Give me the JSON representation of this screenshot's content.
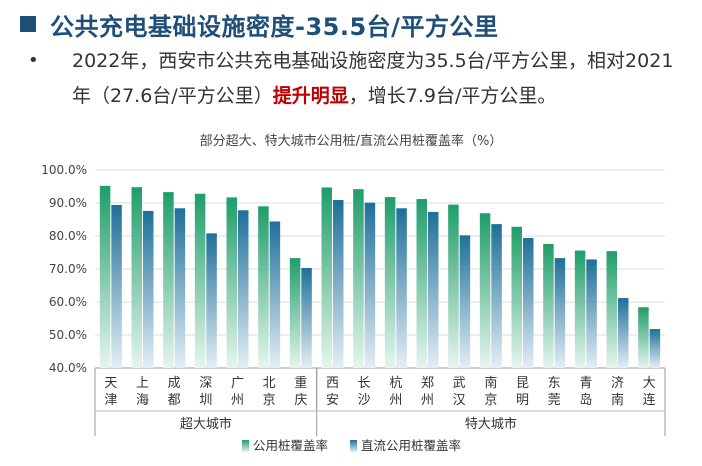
{
  "slide": {
    "title": "公共充电基础设施密度-35.5台/平方公里",
    "bullet": "•",
    "para_before": "2022年，西安市公共充电基础设施密度为35.5台/平方公里，相对2021年（27.6台/平方公里）",
    "para_highlight": "提升明显",
    "para_after": "，增长7.9台/平方公里。"
  },
  "colors": {
    "title": "#1f4e79",
    "highlight": "#c00000",
    "series1_top": "#1f9d6a",
    "series1_bottom": "#e6f5ee",
    "series2_top": "#1f6f9a",
    "series2_bottom": "#e4eef5"
  },
  "chart_data": {
    "type": "bar",
    "title": "部分超大、特大城市公用桩/直流公用桩覆盖率（%）",
    "categories": [
      "天津",
      "上海",
      "成都",
      "深圳",
      "广州",
      "北京",
      "重庆",
      "西安",
      "长沙",
      "杭州",
      "郑州",
      "武汉",
      "南京",
      "昆明",
      "东莞",
      "青岛",
      "济南",
      "大连"
    ],
    "category_groups": [
      {
        "name": "超大城市",
        "start": 0,
        "end": 6
      },
      {
        "name": "特大城市",
        "start": 7,
        "end": 17
      }
    ],
    "series": [
      {
        "name": "公用桩覆盖率",
        "values": [
          95.2,
          94.8,
          93.3,
          92.8,
          91.7,
          89.0,
          73.3,
          94.7,
          94.2,
          91.8,
          91.2,
          89.5,
          86.9,
          82.8,
          77.6,
          75.6,
          75.4,
          58.4
        ]
      },
      {
        "name": "直流公用桩覆盖率",
        "values": [
          89.4,
          87.6,
          88.4,
          80.8,
          87.8,
          84.4,
          70.3,
          90.9,
          90.1,
          88.4,
          87.3,
          80.2,
          83.6,
          79.4,
          73.3,
          72.9,
          61.2,
          51.8
        ]
      }
    ],
    "ylim": [
      40,
      100
    ],
    "yticks": [
      "40.0%",
      "50.0%",
      "60.0%",
      "70.0%",
      "80.0%",
      "90.0%",
      "100.0%"
    ],
    "grid": true,
    "legend_position": "bottom"
  }
}
